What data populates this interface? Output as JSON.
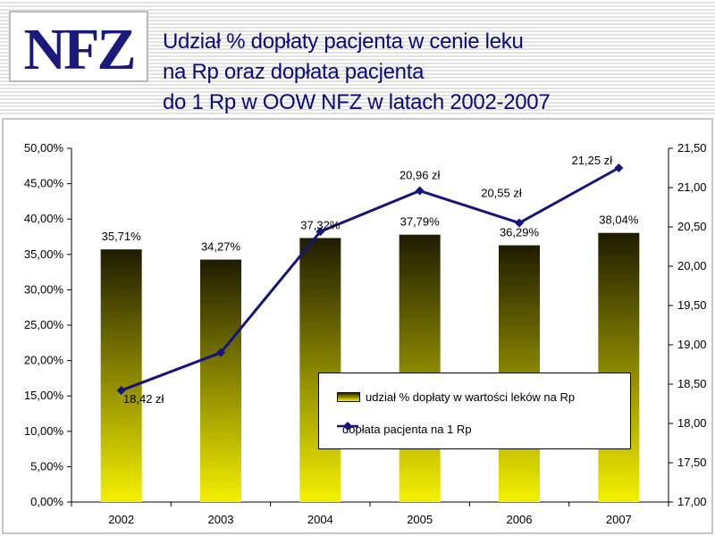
{
  "header": {
    "logo_alt": "NFZ",
    "title_lines": [
      "Udział % dopłaty pacjenta w cenie leku",
      "na Rp oraz dopłata pacjenta",
      "do 1 Rp w OOW NFZ w latach 2002-2007"
    ]
  },
  "colors": {
    "title": "#0a0a7c",
    "logo": "#1a1a7a",
    "bar_top": "#1f1c00",
    "bar_bottom": "#f4f000",
    "line": "#14147c",
    "header_stripe": "#e2e2e2"
  },
  "chart_data": {
    "type": "bar+line",
    "categories": [
      "2002",
      "2003",
      "2004",
      "2005",
      "2006",
      "2007"
    ],
    "series": [
      {
        "name": "udział % dopłaty w wartości leków na Rp",
        "type": "bar",
        "axis": "left",
        "values": [
          35.71,
          34.27,
          37.32,
          37.79,
          36.29,
          38.04
        ],
        "labels": [
          "35,71%",
          "34,27%",
          "37,32%",
          "37,79%",
          "36,29%",
          "38,04%"
        ]
      },
      {
        "name": "dopłata pacjenta na 1 Rp",
        "type": "line",
        "axis": "right",
        "values": [
          18.42,
          18.9,
          20.44,
          20.96,
          20.55,
          21.25
        ],
        "labels": [
          "18,42 zł",
          "",
          "",
          "20,96 zł",
          "20,55 zł",
          "21,25 zł"
        ]
      }
    ],
    "y_left": {
      "ylim": [
        0,
        50
      ],
      "ticks": [
        "0,00%",
        "5,00%",
        "10,00%",
        "15,00%",
        "20,00%",
        "25,00%",
        "30,00%",
        "35,00%",
        "40,00%",
        "45,00%",
        "50,00%"
      ]
    },
    "y_right": {
      "ylim": [
        17,
        21.5
      ],
      "ticks": [
        "17,00",
        "17,50",
        "18,00",
        "18,50",
        "19,00",
        "19,50",
        "20,00",
        "20,50",
        "21,00",
        "21,50"
      ]
    },
    "grid": false,
    "legend_position": "lower-right"
  }
}
